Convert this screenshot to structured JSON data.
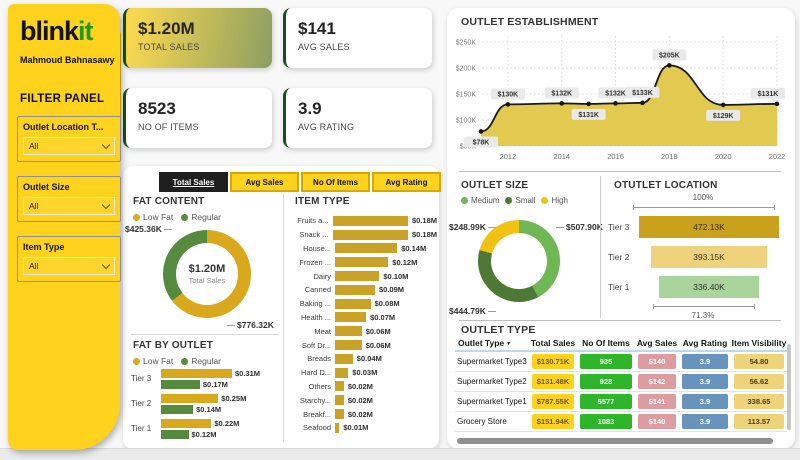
{
  "sidebar": {
    "logo_black": "blink",
    "logo_green": "it",
    "author": "Mahmoud Bahnasawy",
    "filter_title": "FILTER PANEL",
    "filters": [
      {
        "label": "Outlet Location T...",
        "value": "All"
      },
      {
        "label": "Outlet Size",
        "value": "All"
      },
      {
        "label": "Item Type",
        "value": "All"
      }
    ]
  },
  "kpis": [
    {
      "value": "$1.20M",
      "label": "TOTAL SALES"
    },
    {
      "value": "$141",
      "label": "AVG SALES"
    },
    {
      "value": "8523",
      "label": "NO OF ITEMS"
    },
    {
      "value": "3.9",
      "label": "AVG RATING"
    }
  ],
  "tabs": [
    {
      "label": "Total Sales",
      "selected": true
    },
    {
      "label": "Avg Sales",
      "selected": false
    },
    {
      "label": "No Of Items",
      "selected": false
    },
    {
      "label": "Avg Rating",
      "selected": false
    }
  ],
  "chart_data": [
    {
      "id": "outlet-establishment",
      "type": "area",
      "title": "OUTLET ESTABLISHMENT",
      "x": [
        2011,
        2012,
        2014,
        2015,
        2016,
        2017,
        2018,
        2020,
        2022
      ],
      "values": [
        78,
        130,
        132,
        131,
        132,
        133,
        205,
        129,
        131
      ],
      "point_labels": [
        "$78K",
        "$130K",
        "$132K",
        "$131K",
        "$132K",
        "$133K",
        "$205K",
        "$129K",
        "$131K"
      ],
      "label_below": [
        true,
        false,
        false,
        true,
        false,
        false,
        false,
        true,
        false
      ],
      "unit": "USD thousands",
      "xticks": [
        2012,
        2014,
        2016,
        2018,
        2020,
        2022
      ],
      "yticks": [
        "$50K",
        "$100K",
        "$150K",
        "$200K",
        "$250K"
      ],
      "ytick_values": [
        50,
        100,
        150,
        200,
        250
      ],
      "xlim": [
        2011,
        2022
      ],
      "ylim": [
        50,
        250
      ],
      "area_color": "#E2C94F",
      "line_color": "#1A1A1A"
    },
    {
      "id": "fat-content",
      "type": "donut",
      "title": "FAT CONTENT",
      "series": [
        {
          "name": "Low Fat",
          "value": 776.32,
          "label": "$776.32K",
          "color": "#D9A81C"
        },
        {
          "name": "Regular",
          "value": 425.36,
          "label": "$425.36K",
          "color": "#568A3E"
        }
      ],
      "center_value": "$1.20M",
      "center_label": "Total Sales"
    },
    {
      "id": "item-type",
      "type": "bar",
      "title": "ITEM TYPE",
      "categories": [
        "Fruits a...",
        "Snack ...",
        "House...",
        "Frozen ...",
        "Dairy",
        "Canned",
        "Baking ...",
        "Health ...",
        "Meat",
        "Soft Dr...",
        "Breads",
        "Hard D...",
        "Others",
        "Starchy...",
        "Breakf...",
        "Seafood"
      ],
      "values": [
        0.18,
        0.18,
        0.14,
        0.12,
        0.1,
        0.09,
        0.08,
        0.07,
        0.06,
        0.06,
        0.04,
        0.03,
        0.02,
        0.02,
        0.02,
        0.01
      ],
      "value_labels": [
        "$0.18M",
        "$0.18M",
        "$0.14M",
        "$0.12M",
        "$0.10M",
        "$0.09M",
        "$0.08M",
        "$0.07M",
        "$0.06M",
        "$0.06M",
        "$0.04M",
        "$0.03M",
        "$0.02M",
        "$0.02M",
        "$0.02M",
        "$0.01M"
      ],
      "bar_color": "#C9A227"
    },
    {
      "id": "fat-by-outlet",
      "type": "bar-grouped",
      "title": "FAT BY OUTLET",
      "categories": [
        "Tier 3",
        "Tier 2",
        "Tier 1"
      ],
      "series": [
        {
          "name": "Low Fat",
          "color": "#D9A81C",
          "values": [
            0.31,
            0.25,
            0.22
          ],
          "value_labels": [
            "$0.31M",
            "$0.25M",
            "$0.22M"
          ]
        },
        {
          "name": "Regular",
          "color": "#568A3E",
          "values": [
            0.17,
            0.14,
            0.12
          ],
          "value_labels": [
            "$0.17M",
            "$0.14M",
            "$0.12M"
          ]
        }
      ]
    },
    {
      "id": "outlet-size",
      "type": "donut",
      "title": "OUTLET SIZE",
      "series": [
        {
          "name": "Medium",
          "value": 507.9,
          "label": "$507.90K",
          "color": "#6FB753"
        },
        {
          "name": "Small",
          "value": 444.79,
          "label": "$444.79K",
          "color": "#4C7A34"
        },
        {
          "name": "High",
          "value": 248.99,
          "label": "$248.99K",
          "color": "#F2C212"
        }
      ]
    },
    {
      "id": "outlet-location",
      "type": "funnel",
      "title": "OTUTLET LOCATION",
      "categories": [
        "Tier 3",
        "Tier 2",
        "Tier 1"
      ],
      "values": [
        472.13,
        393.15,
        336.4
      ],
      "value_labels": [
        "472.13K",
        "393.15K",
        "336.40K"
      ],
      "colors": [
        "#C9A11C",
        "#EFD37C",
        "#A9D49B"
      ],
      "top_percent": "100%",
      "bottom_percent": "71.3%"
    },
    {
      "id": "outlet-type",
      "type": "table",
      "title": "OUTLET TYPE",
      "columns": [
        "Outlet Type",
        "Total Sales",
        "No Of Items",
        "Avg Sales",
        "Avg Rating",
        "Item Visibility"
      ],
      "rows": [
        [
          "Supermarket Type3",
          "$130.71K",
          "935",
          "$140",
          "3.9",
          "54.80"
        ],
        [
          "Supermarket Type2",
          "$131.48K",
          "928",
          "$142",
          "3.9",
          "56.62"
        ],
        [
          "Supermarket Type1",
          "$787.55K",
          "5577",
          "$141",
          "3.9",
          "338.65"
        ],
        [
          "Grocery Store",
          "$151.94K",
          "1083",
          "$140",
          "3.9",
          "113.57"
        ]
      ]
    }
  ]
}
